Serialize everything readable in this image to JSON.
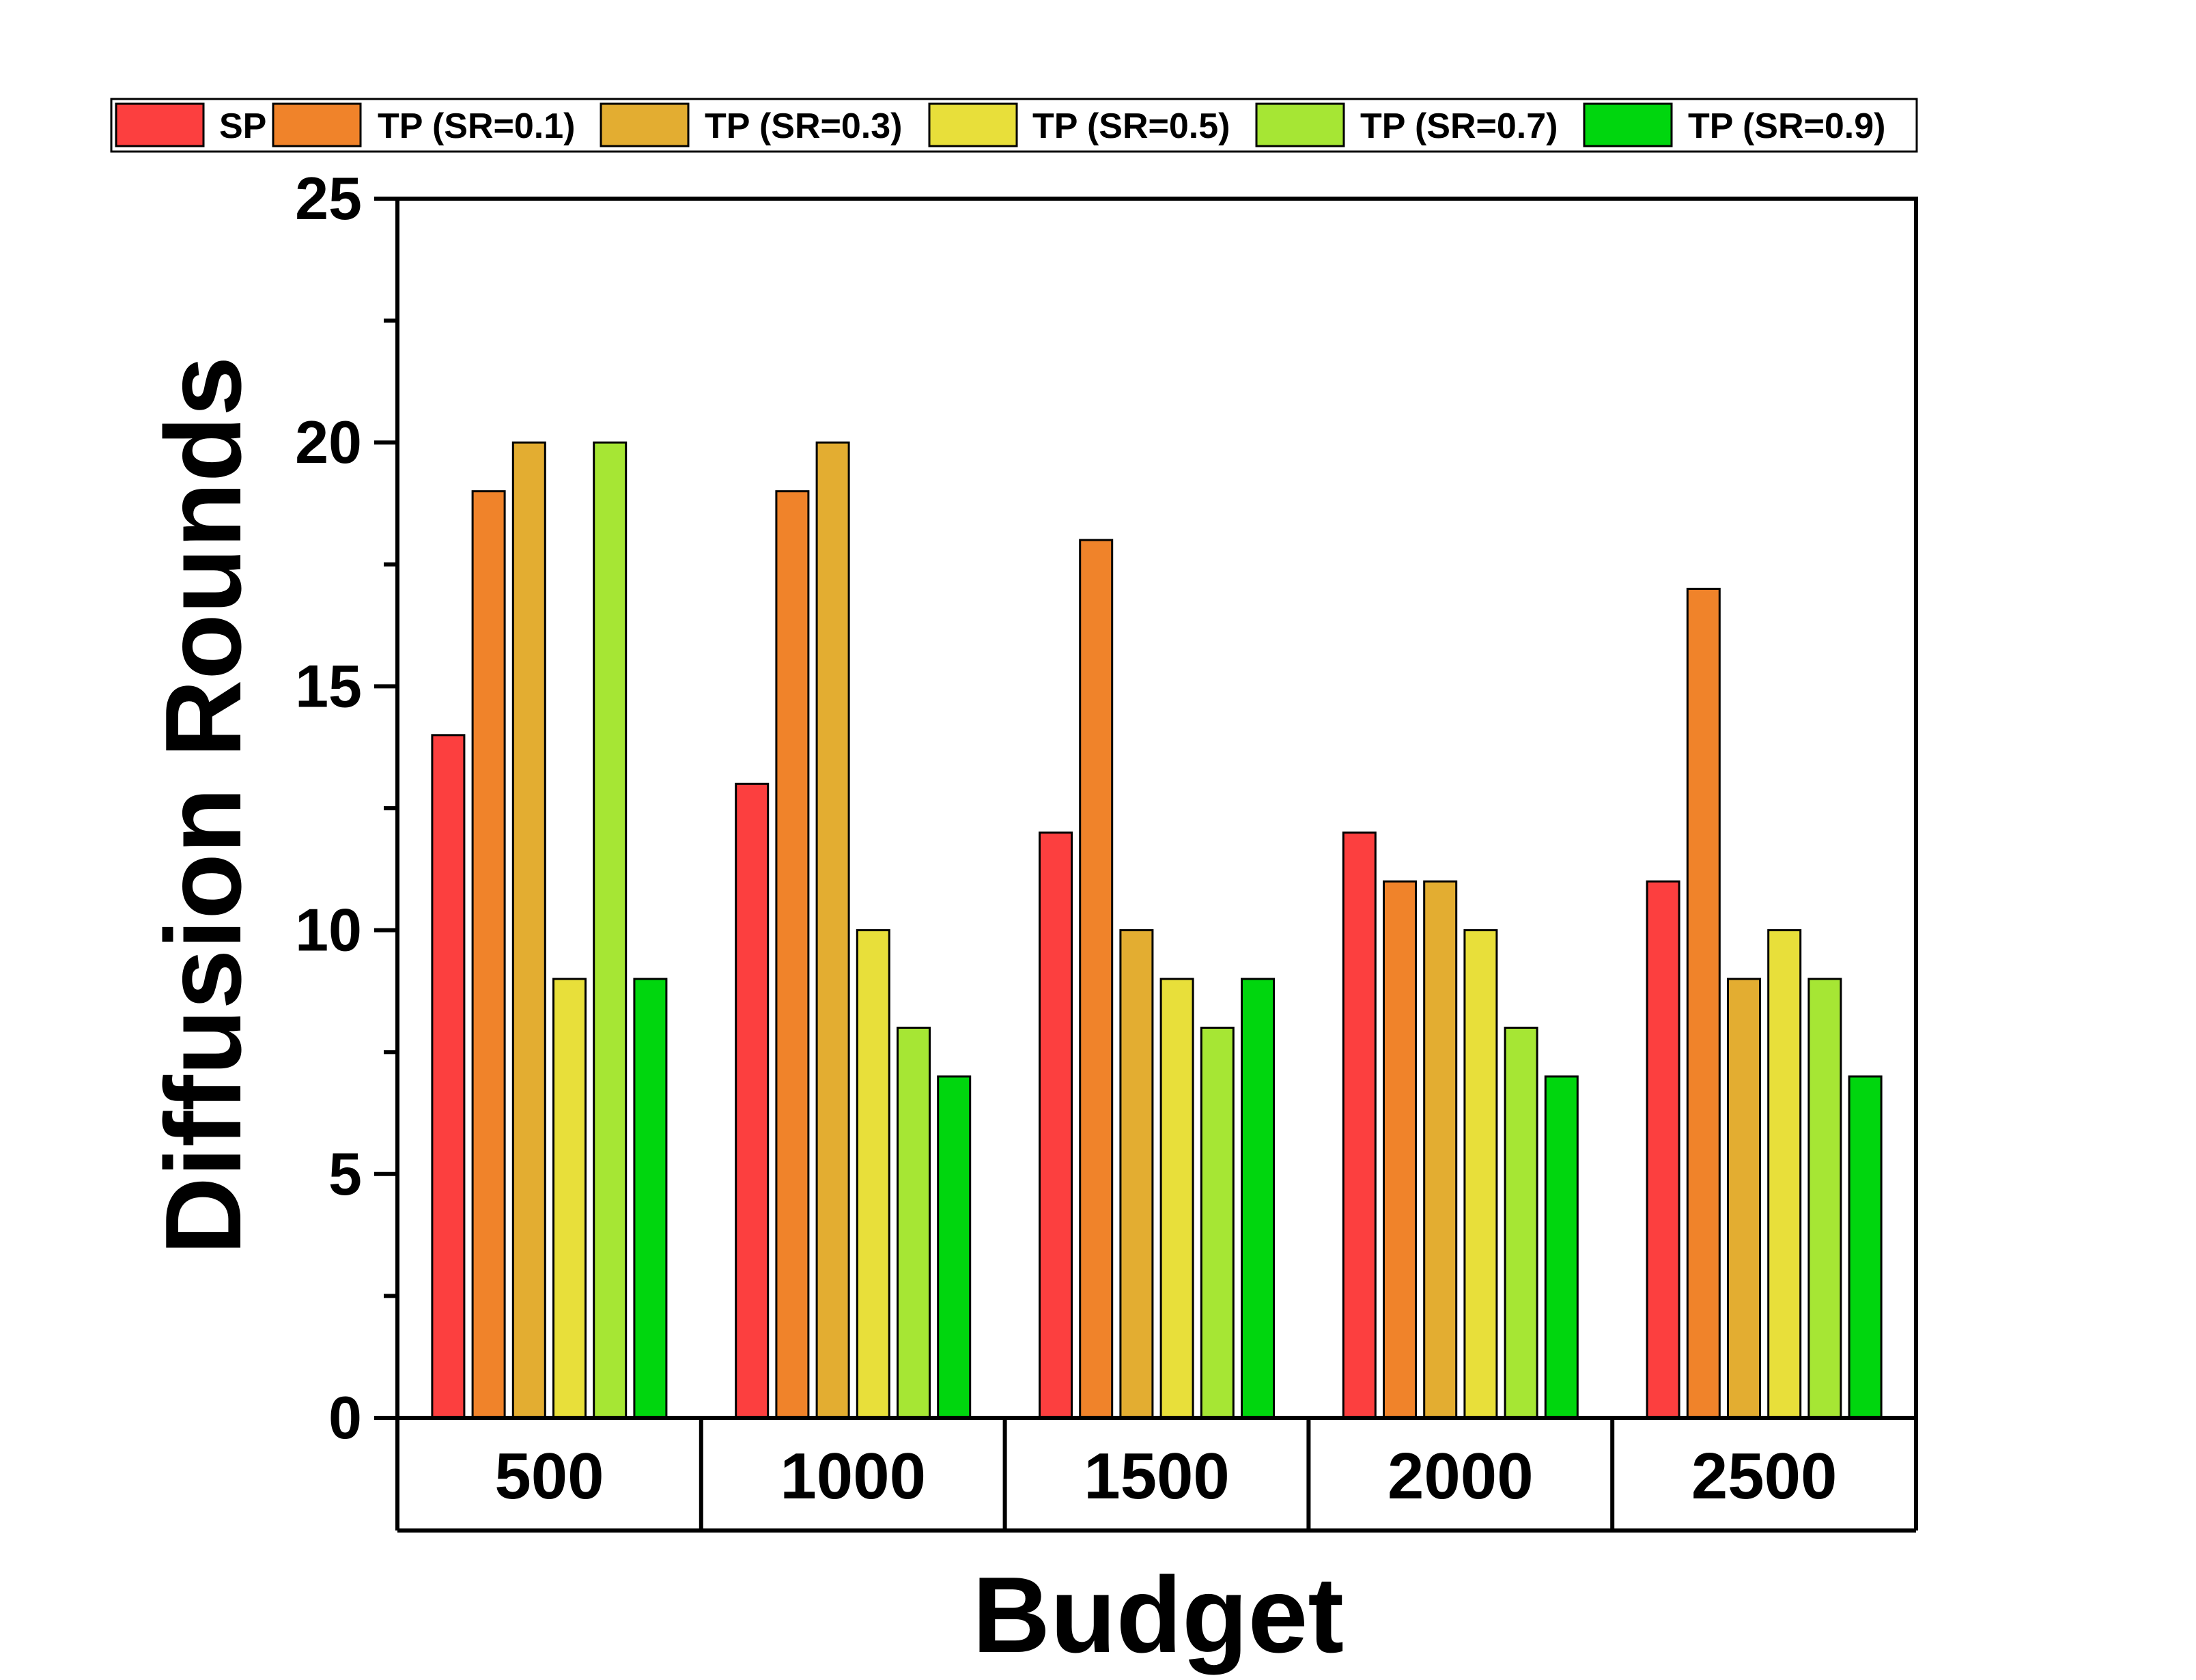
{
  "chart_data": {
    "type": "bar",
    "title": "",
    "xlabel": "Budget",
    "ylabel": "Diffusion Rounds",
    "categories": [
      "500",
      "1000",
      "1500",
      "2000",
      "2500"
    ],
    "ylim": [
      0,
      25
    ],
    "yticks": [
      "0",
      "5",
      "10",
      "15",
      "20",
      "25"
    ],
    "grid": false,
    "legend_position": "top",
    "series": [
      {
        "name": "SP",
        "color": "#fc3f3f",
        "values": [
          14,
          13,
          12,
          12,
          11
        ]
      },
      {
        "name": "TP (SR=0.1)",
        "color": "#f0832a",
        "values": [
          19,
          19,
          18,
          11,
          17
        ]
      },
      {
        "name": "TP (SR=0.3)",
        "color": "#e3ad31",
        "values": [
          20,
          20,
          10,
          11,
          9
        ]
      },
      {
        "name": "TP (SR=0.5)",
        "color": "#e8df3a",
        "values": [
          9,
          10,
          9,
          10,
          10
        ]
      },
      {
        "name": "TP (SR=0.7)",
        "color": "#a6e634",
        "values": [
          20,
          8,
          8,
          8,
          9
        ]
      },
      {
        "name": "TP (SR=0.9)",
        "color": "#00d60e",
        "values": [
          9,
          7,
          9,
          7,
          7
        ]
      }
    ]
  }
}
